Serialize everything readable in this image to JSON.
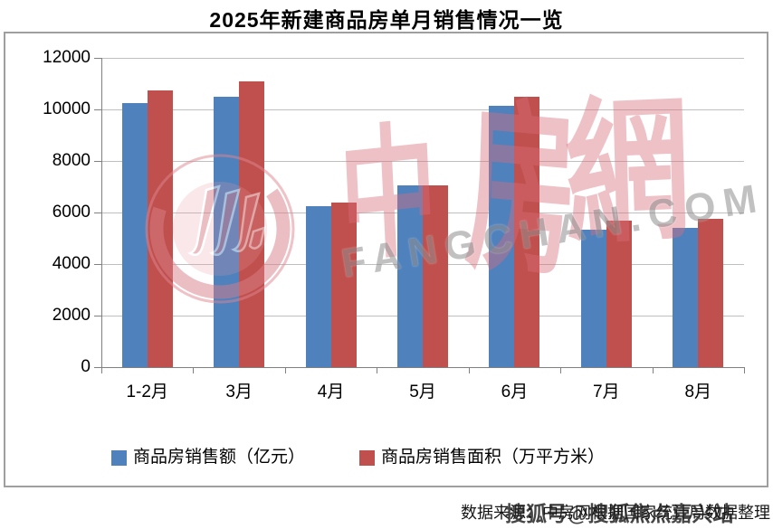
{
  "page": {
    "title": "2025年新建商品房单月销售情况一览"
  },
  "chart_data": {
    "type": "bar",
    "title": "2025年新建商品房单月销售情况一览",
    "categories": [
      "1-2月",
      "3月",
      "4月",
      "5月",
      "6月",
      "7月",
      "8月"
    ],
    "series": [
      {
        "name": "商品房销售额（亿元）",
        "color": "#4F81BD",
        "values": [
          10250,
          10500,
          6250,
          7050,
          10150,
          5350,
          5400
        ]
      },
      {
        "name": "商品房销售面积（万平方米）",
        "color": "#C0504D",
        "values": [
          10750,
          11100,
          6400,
          7050,
          10500,
          5700,
          5750
        ]
      }
    ],
    "ylim": [
      0,
      12000
    ],
    "ytick_step": 2000,
    "yticks": [
      0,
      2000,
      4000,
      6000,
      8000,
      10000,
      12000
    ],
    "grid": "horizontal",
    "legend_position": "bottom"
  },
  "watermark": {
    "logo_icon": "zhongfangwang-circle-logo",
    "brand_chars": [
      "中",
      "房",
      "網"
    ],
    "domain_text": "FANGCHAN.COM",
    "overlay_text": "搜狐号@搜狐焦点嘉兴站"
  },
  "source": {
    "label": "数据来源：中房网根据国家统计局数据整理"
  },
  "colors": {
    "sales_amount_blue": "#4F81BD",
    "sales_area_red": "#C0504D",
    "gridline": "#BFBFBF",
    "axis": "#808080",
    "frame_border": "#9F9F9F",
    "watermark_pink": "#D96E7B",
    "watermark_gray": "#8F8F8F"
  }
}
